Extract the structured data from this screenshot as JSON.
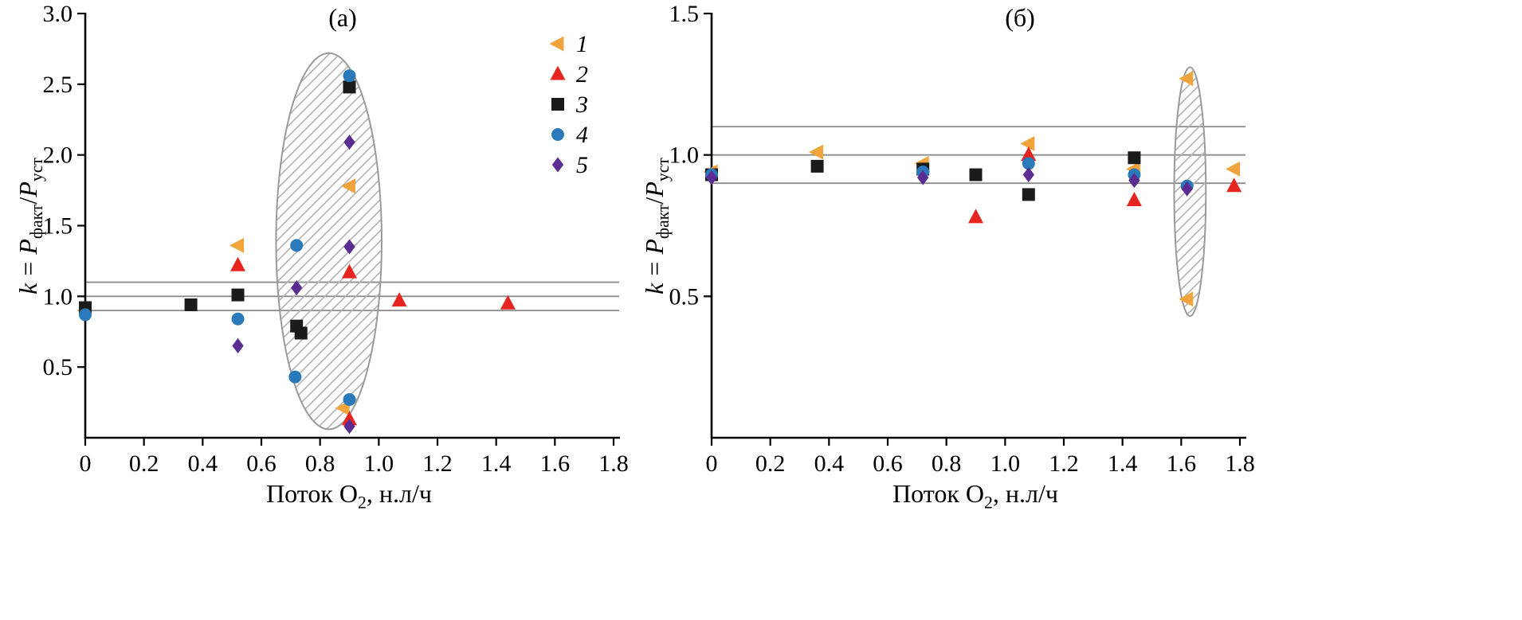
{
  "figure": {
    "background": "#ffffff"
  },
  "labels": {
    "xlabel_prefix": "Поток O",
    "xlabel_sub": "2",
    "xlabel_suffix": ", н.л/ч",
    "ylabel_var": "k",
    "ylabel_eq": "=",
    "ylabel_P": "P",
    "ylabel_sub_fact": "факт",
    "ylabel_slash": "/",
    "ylabel_sub_ust": "уст"
  },
  "style": {
    "axis_color": "#000000",
    "ref_line_color": "#8c8c8c",
    "ellipse_stroke": "#9a9a9a",
    "hatch_color": "#b2b2b2"
  },
  "chart_data": [
    {
      "id": "a",
      "type": "scatter",
      "title": "(а)",
      "xlabel": "Поток O2, н.л/ч",
      "ylabel": "k = Pфакт/Pуст",
      "xlim": [
        0,
        1.8
      ],
      "ylim": [
        0,
        3.0
      ],
      "xticks": [
        [
          0,
          "0"
        ],
        [
          0.2,
          "0.2"
        ],
        [
          0.4,
          "0.4"
        ],
        [
          0.6,
          "0.6"
        ],
        [
          0.8,
          "0.8"
        ],
        [
          1.0,
          "1.0"
        ],
        [
          1.2,
          "1.2"
        ],
        [
          1.4,
          "1.4"
        ],
        [
          1.6,
          "1.6"
        ],
        [
          1.8,
          "1.8"
        ]
      ],
      "yticks": [
        [
          0.5,
          "0.5"
        ],
        [
          1.0,
          "1.0"
        ],
        [
          1.5,
          "1.5"
        ],
        [
          2.0,
          "2.0"
        ],
        [
          2.5,
          "2.5"
        ],
        [
          3.0,
          "3.0"
        ]
      ],
      "ref_lines": [
        0.9,
        1.0,
        1.1
      ],
      "ellipse": {
        "cx": 0.83,
        "cy": 1.39,
        "rx": 0.18,
        "ry": 1.33
      },
      "show_legend": true,
      "series": [
        {
          "name": "1",
          "marker": "triangle-left",
          "color": "#F2A43C",
          "points": [
            [
              0,
              0.9
            ],
            [
              0.52,
              1.36
            ],
            [
              0.9,
              1.78
            ],
            [
              0.88,
              0.21
            ]
          ]
        },
        {
          "name": "2",
          "marker": "triangle-up",
          "color": "#E62420",
          "points": [
            [
              0.52,
              1.22
            ],
            [
              0.9,
              1.17
            ],
            [
              1.07,
              0.97
            ],
            [
              1.44,
              0.95
            ],
            [
              0.9,
              0.13
            ]
          ]
        },
        {
          "name": "3",
          "marker": "square",
          "color": "#1B1B1B",
          "points": [
            [
              0,
              0.92
            ],
            [
              0.36,
              0.94
            ],
            [
              0.52,
              1.01
            ],
            [
              0.72,
              0.79
            ],
            [
              0.735,
              0.74
            ],
            [
              0.9,
              2.48
            ]
          ]
        },
        {
          "name": "4",
          "marker": "circle",
          "color": "#2A7ABB",
          "points": [
            [
              0,
              0.87
            ],
            [
              0.52,
              0.84
            ],
            [
              0.72,
              1.36
            ],
            [
              0.715,
              0.43
            ],
            [
              0.9,
              2.56
            ],
            [
              0.9,
              0.27
            ]
          ]
        },
        {
          "name": "5",
          "marker": "diamond",
          "color": "#5B2C92",
          "points": [
            [
              0.52,
              0.65
            ],
            [
              0.72,
              1.06
            ],
            [
              0.9,
              2.09
            ],
            [
              0.9,
              1.35
            ],
            [
              0.9,
              0.08
            ]
          ]
        }
      ]
    },
    {
      "id": "b",
      "type": "scatter",
      "title": "(б)",
      "xlabel": "Поток O2, н.л/ч",
      "ylabel": "k = Pфакт/Pуст",
      "xlim": [
        0,
        1.8
      ],
      "ylim": [
        0,
        1.5
      ],
      "xticks": [
        [
          0,
          "0"
        ],
        [
          0.2,
          "0.2"
        ],
        [
          0.4,
          "0.4"
        ],
        [
          0.6,
          "0.6"
        ],
        [
          0.8,
          "0.8"
        ],
        [
          1.0,
          "1.0"
        ],
        [
          1.2,
          "1.2"
        ],
        [
          1.4,
          "1.4"
        ],
        [
          1.6,
          "1.6"
        ],
        [
          1.8,
          "1.8"
        ]
      ],
      "yticks": [
        [
          0.5,
          "0.5"
        ],
        [
          1.0,
          "1.0"
        ],
        [
          1.5,
          "1.5"
        ]
      ],
      "ref_lines": [
        0.9,
        1.0,
        1.1
      ],
      "ellipse": {
        "cx": 1.63,
        "cy": 0.87,
        "rx": 0.054,
        "ry": 0.44
      },
      "show_legend": false,
      "series": [
        {
          "name": "1",
          "marker": "triangle-left",
          "color": "#F2A43C",
          "points": [
            [
              0,
              0.94
            ],
            [
              0.36,
              1.01
            ],
            [
              0.72,
              0.97
            ],
            [
              1.08,
              1.04
            ],
            [
              1.44,
              0.95
            ],
            [
              1.62,
              1.27
            ],
            [
              1.62,
              0.49
            ],
            [
              1.78,
              0.95
            ]
          ]
        },
        {
          "name": "2",
          "marker": "triangle-up",
          "color": "#E62420",
          "points": [
            [
              0.9,
              0.78
            ],
            [
              1.08,
              1.0
            ],
            [
              1.44,
              0.84
            ],
            [
              1.78,
              0.89
            ]
          ]
        },
        {
          "name": "3",
          "marker": "square",
          "color": "#1B1B1B",
          "points": [
            [
              0,
              0.93
            ],
            [
              0.36,
              0.96
            ],
            [
              0.72,
              0.95
            ],
            [
              0.9,
              0.93
            ],
            [
              1.08,
              0.86
            ],
            [
              1.44,
              0.99
            ]
          ]
        },
        {
          "name": "4",
          "marker": "circle",
          "color": "#2A7ABB",
          "points": [
            [
              0,
              0.93
            ],
            [
              0.72,
              0.94
            ],
            [
              1.08,
              0.97
            ],
            [
              1.44,
              0.93
            ],
            [
              1.62,
              0.89
            ]
          ]
        },
        {
          "name": "5",
          "marker": "diamond",
          "color": "#5B2C92",
          "points": [
            [
              0,
              0.92
            ],
            [
              0.72,
              0.92
            ],
            [
              1.08,
              0.93
            ],
            [
              1.44,
              0.91
            ],
            [
              1.62,
              0.88
            ]
          ]
        }
      ]
    }
  ]
}
